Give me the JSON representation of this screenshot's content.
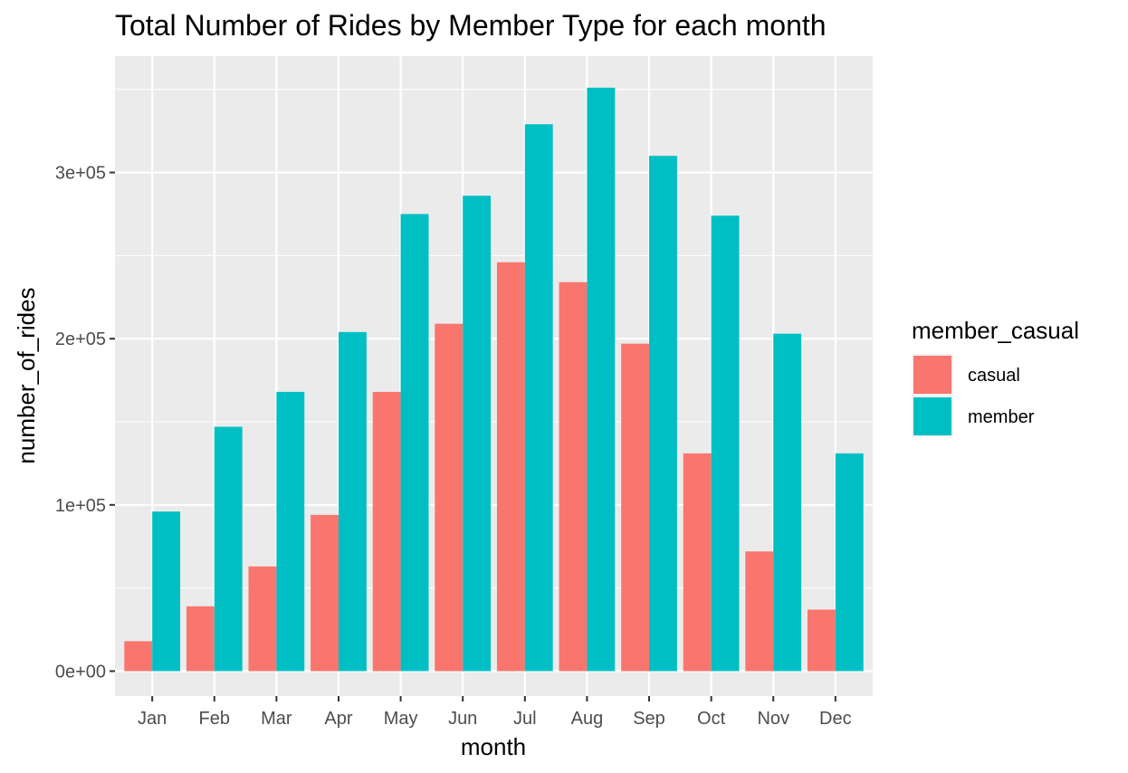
{
  "chart_data": {
    "type": "bar",
    "title": "Total Number of Rides by Member Type for each month",
    "xlabel": "month",
    "ylabel": "number_of_rides",
    "categories": [
      "Jan",
      "Feb",
      "Mar",
      "Apr",
      "May",
      "Jun",
      "Jul",
      "Aug",
      "Sep",
      "Oct",
      "Nov",
      "Dec"
    ],
    "series": [
      {
        "name": "casual",
        "color": "#F8766D",
        "values": [
          18000,
          39000,
          63000,
          94000,
          168000,
          209000,
          246000,
          234000,
          197000,
          131000,
          72000,
          37000
        ]
      },
      {
        "name": "member",
        "color": "#00BFC4",
        "values": [
          96000,
          147000,
          168000,
          204000,
          275000,
          286000,
          329000,
          351000,
          310000,
          274000,
          203000,
          131000
        ]
      }
    ],
    "ylim": [
      -15000,
      370000
    ],
    "yticks": [
      0,
      100000,
      200000,
      300000
    ],
    "ytick_labels": [
      "0e+00",
      "1e+05",
      "2e+05",
      "3e+05"
    ],
    "grid": true,
    "panel_background": "#EBEBEB",
    "legend": {
      "title": "member_casual",
      "position": "right"
    }
  }
}
